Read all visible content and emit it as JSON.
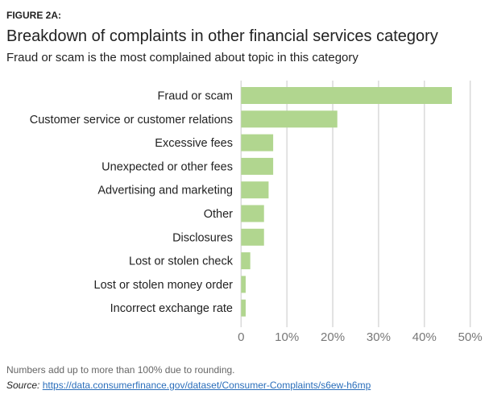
{
  "figure_label": "FIGURE 2A:",
  "note": "Numbers add up to more than 100% due to rounding.",
  "source_label": "Source:",
  "source_url": "https://data.consumerfinance.gov/dataset/Consumer-Complaints/s6ew-h6mp",
  "chart_data": {
    "type": "bar",
    "orientation": "horizontal",
    "title": "Breakdown of complaints in other financial services category",
    "subtitle": "Fraud or scam is the most complained about topic in this category",
    "categories": [
      "Fraud or scam",
      "Customer service or customer relations",
      "Excessive fees",
      "Unexpected or other fees",
      "Advertising and marketing",
      "Other",
      "Disclosures",
      "Lost or stolen check",
      "Lost or stolen money order",
      "Incorrect exchange rate"
    ],
    "values": [
      46,
      21,
      7,
      7,
      6,
      5,
      5,
      2,
      1,
      1
    ],
    "unit": "%",
    "xlim": [
      0,
      50
    ],
    "ticks": [
      0,
      10,
      20,
      30,
      40,
      50
    ],
    "tick_labels": [
      "0",
      "10%",
      "20%",
      "30%",
      "40%",
      "50%"
    ],
    "grid": true,
    "bar_color": "#b1d68f",
    "grid_color": "#d9d9d9"
  }
}
